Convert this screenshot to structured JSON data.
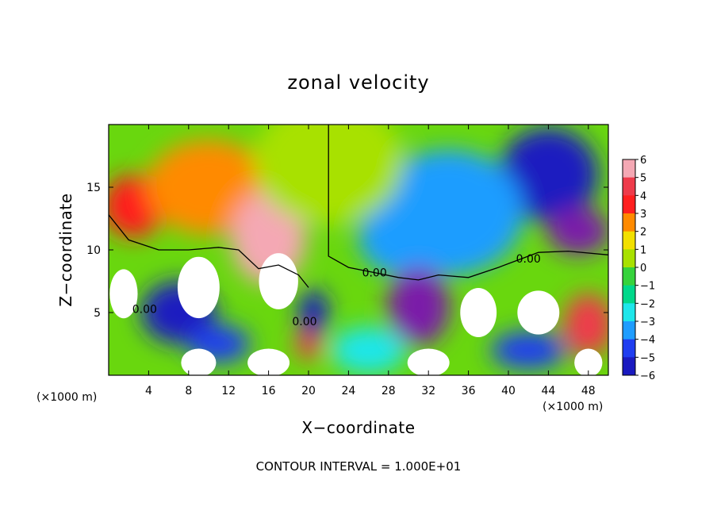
{
  "chart_data": {
    "type": "heatmap",
    "title": "zonal velocity",
    "xlabel": "X−coordinate",
    "ylabel": "Z−coordinate",
    "x_unit_left": "(×1000 m)",
    "x_unit_right": "(×1000 m)",
    "footer": "CONTOUR INTERVAL = 1.000E+01",
    "xlim": [
      0,
      50
    ],
    "ylim": [
      0,
      20
    ],
    "x_ticks": [
      4,
      8,
      12,
      16,
      20,
      24,
      28,
      32,
      36,
      40,
      44,
      48
    ],
    "x_tick_labels": [
      "4",
      "8",
      "12",
      "16",
      "20",
      "24",
      "28",
      "32",
      "36",
      "40",
      "44",
      "48"
    ],
    "y_ticks": [
      5,
      10,
      15
    ],
    "y_tick_labels": [
      "5",
      "10",
      "15"
    ],
    "colorbar": {
      "range": [
        -6,
        6
      ],
      "levels": [
        6,
        5,
        4,
        3,
        2,
        1,
        0,
        -1,
        -2,
        -3,
        -4,
        -5,
        -6
      ],
      "labels": [
        "6",
        "5",
        "4",
        "3",
        "2",
        "1",
        "0",
        "−1",
        "−2",
        "−3",
        "−4",
        "−5",
        "−6"
      ],
      "colors": [
        "#f4a8b4",
        "#ee3b4b",
        "#ff1f1f",
        "#ff8a00",
        "#f2e000",
        "#a8e100",
        "#36d33c",
        "#00d88a",
        "#1ee6ea",
        "#1f9dff",
        "#1f3df0",
        "#1a1ac0",
        "#7a1aa8"
      ]
    },
    "contour_labels": [
      {
        "text": "0.00",
        "x": 3.6,
        "z": 5.3
      },
      {
        "text": "0.00",
        "x": 26.6,
        "z": 8.2
      },
      {
        "text": "0.00",
        "x": 42.0,
        "z": 9.3
      },
      {
        "text": "0.00",
        "x": 19.6,
        "z": 4.3
      }
    ],
    "field_blobs": [
      {
        "x": 2.5,
        "z": 13.5,
        "value": 4,
        "rx": 2.5,
        "rz": 2.0
      },
      {
        "x": 10,
        "z": 15,
        "value": 3,
        "rx": 5,
        "rz": 3
      },
      {
        "x": 16,
        "z": 11,
        "value": 6,
        "rx": 3,
        "rz": 3
      },
      {
        "x": 1.5,
        "z": 6.5,
        "value": 7,
        "rx": 2,
        "rz": 2.8
      },
      {
        "x": 9,
        "z": 7,
        "value": 8,
        "rx": 3,
        "rz": 3.5
      },
      {
        "x": 17,
        "z": 7.5,
        "value": 8,
        "rx": 2.8,
        "rz": 3.2
      },
      {
        "x": 37,
        "z": 5,
        "value": 8,
        "rx": 2.6,
        "rz": 2.8
      },
      {
        "x": 43,
        "z": 5,
        "value": 7,
        "rx": 3,
        "rz": 2.5
      },
      {
        "x": 48,
        "z": 4,
        "value": 5,
        "rx": 2,
        "rz": 2
      },
      {
        "x": 9,
        "z": 1,
        "value": 7,
        "rx": 2.5,
        "rz": 1.6
      },
      {
        "x": 16,
        "z": 1,
        "value": 7,
        "rx": 3,
        "rz": 1.6
      },
      {
        "x": 32,
        "z": 1,
        "value": 7,
        "rx": 3,
        "rz": 1.6
      },
      {
        "x": 48,
        "z": 1,
        "value": 7,
        "rx": 2,
        "rz": 1.6
      },
      {
        "x": 20,
        "z": 2.5,
        "value": 5,
        "rx": 1,
        "rz": 1
      },
      {
        "x": 44,
        "z": 16,
        "value": -5,
        "rx": 4,
        "rz": 3
      },
      {
        "x": 47,
        "z": 11.5,
        "value": -6,
        "rx": 2.5,
        "rz": 1.5
      },
      {
        "x": 34,
        "z": 13,
        "value": -3,
        "rx": 6,
        "rz": 4
      },
      {
        "x": 30,
        "z": 11,
        "value": -3,
        "rx": 4,
        "rz": 2.5
      },
      {
        "x": 31,
        "z": 5.5,
        "value": -6,
        "rx": 2.5,
        "rz": 2.5
      },
      {
        "x": 7,
        "z": 5,
        "value": -5,
        "rx": 3,
        "rz": 2
      },
      {
        "x": 11,
        "z": 2.5,
        "value": -4,
        "rx": 2.5,
        "rz": 1.2
      },
      {
        "x": 20.5,
        "z": 5,
        "value": -5,
        "rx": 1.2,
        "rz": 1.5
      },
      {
        "x": 26,
        "z": 2,
        "value": -2,
        "rx": 3,
        "rz": 1.5
      },
      {
        "x": 42,
        "z": 2,
        "value": -4,
        "rx": 3,
        "rz": 1.2
      },
      {
        "x": 22,
        "z": 17,
        "value": 1,
        "rx": 6,
        "rz": 4
      }
    ]
  }
}
